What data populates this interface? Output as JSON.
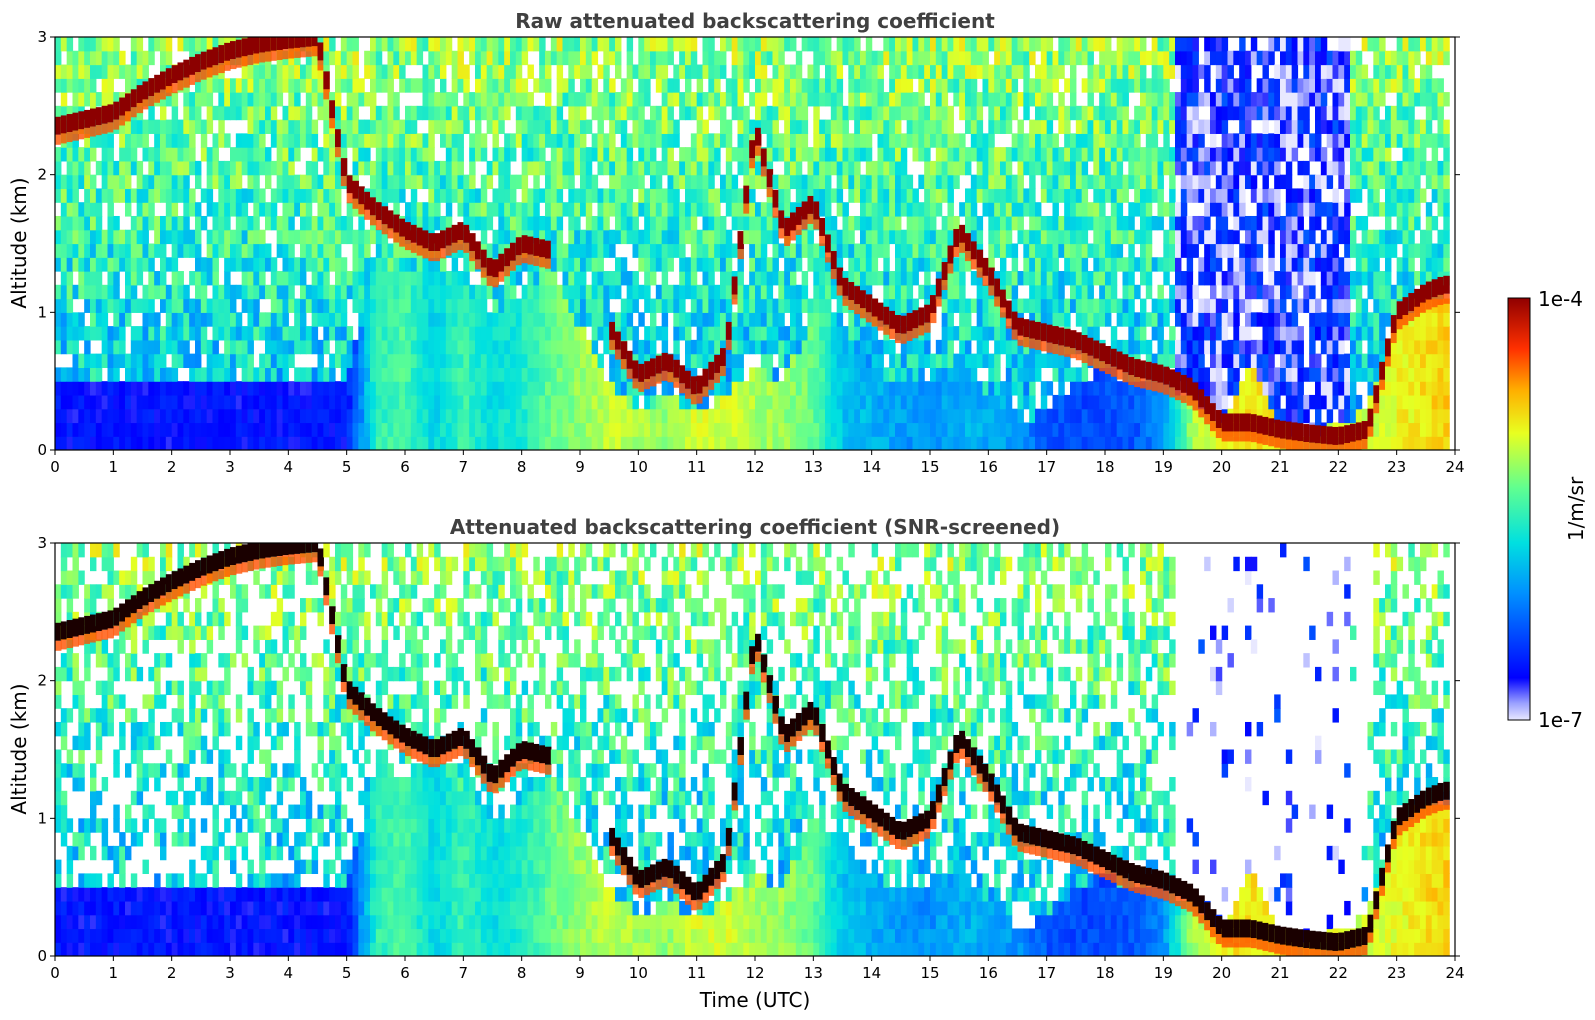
{
  "chart_data": [
    {
      "type": "heatmap",
      "title": "Raw attenuated backscattering coefficient",
      "xlabel": "",
      "ylabel": "Altitude (km)",
      "xlim": [
        0,
        24
      ],
      "ylim": [
        0,
        3
      ],
      "x_ticks": [
        "0",
        "1",
        "2",
        "3",
        "4",
        "5",
        "6",
        "7",
        "8",
        "9",
        "10",
        "11",
        "12",
        "13",
        "14",
        "15",
        "16",
        "17",
        "18",
        "19",
        "20",
        "21",
        "22",
        "23",
        "24"
      ],
      "y_ticks": [
        "0",
        "1",
        "2",
        "3"
      ],
      "colorscale": "jet",
      "value_range": [
        1e-07,
        0.0001
      ],
      "layers": [
        {
          "name": "lower",
          "t": [
            0,
            0.5,
            1,
            1.5,
            2,
            2.5,
            3,
            3.5,
            4,
            4.5,
            5,
            5.5,
            6,
            6.5,
            7,
            7.5,
            8,
            8.5,
            9,
            9.5,
            10,
            10.5,
            11,
            11.5,
            12,
            12.5,
            13,
            13.5,
            14,
            14.5,
            15,
            15.5,
            16,
            16.5,
            17,
            17.5,
            18,
            18.5,
            19,
            19.5,
            20,
            20.5,
            21,
            21.5,
            22,
            22.5,
            23,
            23.5,
            23.8
          ],
          "top_km": [
            0.5,
            0.5,
            0.5,
            0.5,
            0.5,
            0.5,
            0.5,
            0.5,
            0.5,
            0.5,
            0.5,
            1.4,
            1.3,
            1.4,
            1.2,
            1.0,
            1.1,
            1.3,
            0.9,
            0.5,
            0.3,
            0.4,
            0.3,
            0.4,
            0.6,
            0.5,
            1.0,
            0.9,
            0.6,
            0.5,
            0.5,
            0.7,
            0.4,
            0.2,
            0.3,
            0.5,
            0.6,
            0.5,
            0.5,
            0.4,
            0.2,
            0.6,
            0.2,
            0.1,
            0.2,
            0.3,
            1.0,
            1.1,
            1.1
          ],
          "intensity": [
            0.12,
            0.12,
            0.12,
            0.12,
            0.12,
            0.12,
            0.12,
            0.12,
            0.12,
            0.12,
            0.12,
            0.48,
            0.52,
            0.4,
            0.5,
            0.42,
            0.46,
            0.55,
            0.6,
            0.65,
            0.62,
            0.6,
            0.66,
            0.66,
            0.62,
            0.6,
            0.55,
            0.38,
            0.35,
            0.32,
            0.3,
            0.35,
            0.34,
            0.3,
            0.22,
            0.2,
            0.2,
            0.22,
            0.3,
            0.62,
            0.7,
            0.72,
            0.68,
            0.66,
            0.66,
            0.65,
            0.68,
            0.72,
            0.74
          ]
        },
        {
          "name": "cloud-base",
          "t": [
            0,
            0.5,
            1,
            1.5,
            2,
            2.5,
            3,
            3.5,
            4,
            4.5,
            5,
            5.5,
            6,
            6.5,
            7,
            7.5,
            8,
            8.5,
            9,
            9.5,
            10,
            10.5,
            11,
            11.5,
            12,
            12.5,
            13,
            13.5,
            14,
            14.5,
            15,
            15.5,
            16,
            16.5,
            17,
            17.5,
            18,
            18.5,
            19,
            19.5,
            20,
            20.5,
            21,
            21.5,
            22,
            22.5,
            23,
            23.5,
            23.8
          ],
          "alt_km": [
            2.35,
            2.4,
            2.45,
            2.6,
            2.72,
            2.82,
            2.9,
            2.95,
            2.98,
            3.0,
            1.95,
            1.75,
            1.6,
            1.5,
            1.6,
            1.3,
            1.5,
            1.45,
            null,
            0.9,
            0.55,
            0.65,
            0.45,
            0.7,
            2.35,
            1.6,
            1.8,
            1.2,
            1.05,
            0.9,
            1.0,
            1.6,
            1.3,
            0.9,
            0.85,
            0.8,
            0.7,
            0.6,
            0.55,
            0.45,
            0.2,
            0.2,
            0.15,
            0.12,
            0.1,
            0.15,
            1.0,
            1.15,
            1.2
          ]
        }
      ]
    },
    {
      "type": "heatmap",
      "title": "Attenuated backscattering coefficient (SNR-screened)",
      "xlabel": "Time (UTC)",
      "ylabel": "Altitude (km)",
      "xlim": [
        0,
        24
      ],
      "ylim": [
        0,
        3
      ],
      "x_ticks": [
        "0",
        "1",
        "2",
        "3",
        "4",
        "5",
        "6",
        "7",
        "8",
        "9",
        "10",
        "11",
        "12",
        "13",
        "14",
        "15",
        "16",
        "17",
        "18",
        "19",
        "20",
        "21",
        "22",
        "23",
        "24"
      ],
      "y_ticks": [
        "0",
        "1",
        "2",
        "3"
      ],
      "colorscale": "jet",
      "value_range": [
        1e-07,
        0.0001
      ]
    }
  ],
  "colorbar": {
    "label": "1/m/sr",
    "max_label": "1e-4",
    "min_label": "1e-7"
  }
}
